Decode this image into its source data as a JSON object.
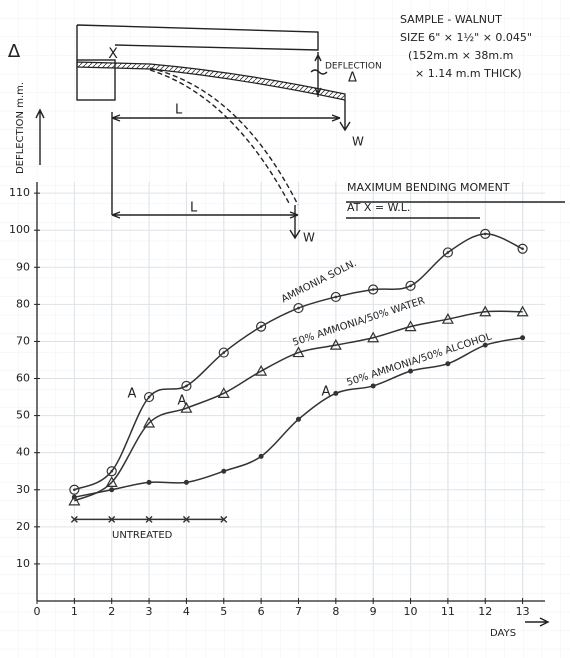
{
  "chart_data": {
    "type": "line",
    "x": [
      1,
      2,
      3,
      4,
      5,
      6,
      7,
      8,
      9,
      10,
      11,
      12,
      13
    ],
    "series": [
      {
        "name": "AMMONIA SOLN.",
        "color": "#333333",
        "marker": "circle-dot",
        "smooth": true,
        "values": [
          30,
          35,
          55,
          58,
          67,
          74,
          79,
          82,
          84,
          85,
          94,
          99,
          95
        ]
      },
      {
        "name": "50% AMMONIA/50% WATER",
        "color": "#333333",
        "marker": "triangle",
        "smooth": true,
        "values": [
          27,
          32,
          48,
          52,
          56,
          62,
          67,
          69,
          71,
          74,
          76,
          78,
          78
        ]
      },
      {
        "name": "50% AMMONIA/50% ALCOHOL",
        "color": "#333333",
        "marker": "dot",
        "smooth": true,
        "values": [
          28,
          30,
          32,
          32,
          35,
          39,
          49,
          56,
          58,
          62,
          64,
          69,
          71
        ]
      },
      {
        "name": "UNTREATED",
        "color": "#333333",
        "marker": "x",
        "smooth": false,
        "values": [
          22,
          22,
          22,
          22,
          22,
          null,
          null,
          null,
          null,
          null,
          null,
          null,
          null
        ]
      }
    ],
    "annotations": [
      "A",
      "A",
      "A"
    ],
    "xlabel": "DAYS",
    "ylabel": "DEFLECTION m.m.",
    "ylabel_symbol": "Δ",
    "xlim": [
      0,
      13.6
    ],
    "ylim": [
      0,
      113
    ],
    "xticks": [
      0,
      1,
      2,
      3,
      4,
      5,
      6,
      7,
      8,
      9,
      10,
      11,
      12,
      13
    ],
    "yticks": [
      10,
      20,
      30,
      40,
      50,
      60,
      70,
      80,
      90,
      100,
      110
    ],
    "grid": true
  },
  "moment": [
    "MAXIMUM BENDING MOMENT",
    "AT X = W.L."
  ],
  "sample": [
    "SAMPLE - WALNUT",
    "SIZE 6\" × 1½\" × 0.045\"",
    "(152m.m × 38m.m",
    "× 1.14 m.m THICK)"
  ],
  "diagram": {
    "point": "X",
    "deflection": "DEFLECTION",
    "delta": "Δ",
    "spans": [
      "L",
      "L"
    ],
    "loads": [
      "W",
      "W"
    ]
  }
}
